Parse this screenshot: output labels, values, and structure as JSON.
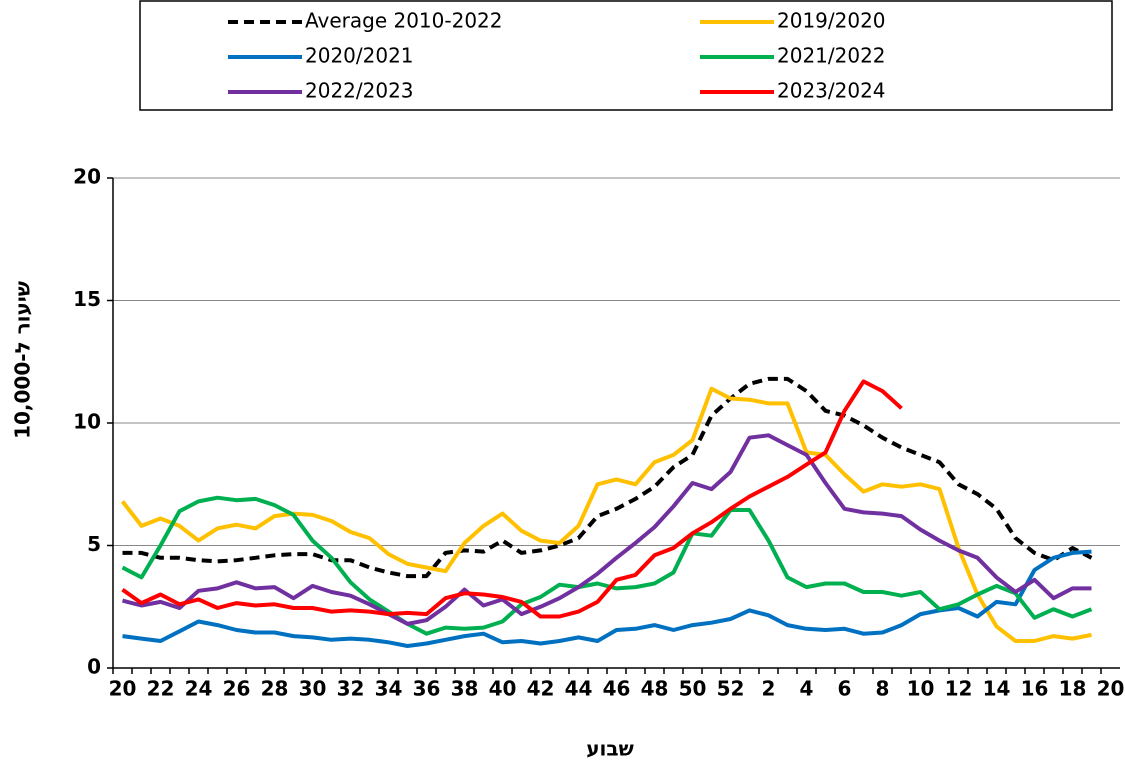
{
  "chart_data": {
    "type": "line",
    "y_label": "שיעור ל-10,000",
    "x_label": "שבוע",
    "categories": [
      "20",
      null,
      "22",
      null,
      "24",
      null,
      "26",
      null,
      "28",
      null,
      "30",
      null,
      "32",
      null,
      "34",
      null,
      "36",
      null,
      "38",
      null,
      "40",
      null,
      "42",
      null,
      "44",
      null,
      "46",
      null,
      "48",
      null,
      "50",
      null,
      "52",
      null,
      "2",
      null,
      "4",
      null,
      "6",
      null,
      "8",
      null,
      "10",
      null,
      "12",
      null,
      "14",
      null,
      "16",
      null,
      "18",
      null,
      "20"
    ],
    "series": [
      {
        "name": "Average 2010-2022",
        "color": "#000000",
        "style": "dashed",
        "values": [
          4.7,
          4.7,
          4.5,
          4.5,
          4.4,
          4.35,
          4.4,
          4.5,
          4.6,
          4.65,
          4.65,
          4.4,
          4.4,
          4.1,
          3.9,
          3.75,
          3.75,
          4.7,
          4.8,
          4.75,
          5.2,
          4.7,
          4.8,
          5.0,
          5.3,
          6.2,
          6.5,
          6.9,
          7.4,
          8.2,
          8.7,
          10.3,
          11.0,
          11.6,
          11.8,
          11.8,
          11.3,
          10.5,
          10.3,
          9.9,
          9.4,
          9.0,
          8.7,
          8.4,
          7.5,
          7.1,
          6.5,
          5.3,
          4.7,
          4.4,
          4.9,
          4.5,
          null
        ]
      },
      {
        "name": "2019/2020",
        "color": "#ffc000",
        "style": "solid",
        "values": [
          6.8,
          5.8,
          6.1,
          5.8,
          5.2,
          5.7,
          5.85,
          5.7,
          6.2,
          6.3,
          6.25,
          6.0,
          5.55,
          5.3,
          4.65,
          4.25,
          4.1,
          3.95,
          5.1,
          5.8,
          6.3,
          5.6,
          5.2,
          5.1,
          5.8,
          7.5,
          7.7,
          7.5,
          8.4,
          8.7,
          9.3,
          11.4,
          11.0,
          10.95,
          10.8,
          10.8,
          8.8,
          8.7,
          7.9,
          7.2,
          7.5,
          7.4,
          7.5,
          7.3,
          4.9,
          3.0,
          1.7,
          1.1,
          1.1,
          1.3,
          1.2,
          1.35,
          null
        ]
      },
      {
        "name": "2020/2021",
        "color": "#0070c0",
        "style": "solid",
        "values": [
          1.3,
          1.2,
          1.1,
          1.5,
          1.9,
          1.75,
          1.55,
          1.45,
          1.45,
          1.3,
          1.25,
          1.15,
          1.2,
          1.15,
          1.05,
          0.9,
          1.0,
          1.15,
          1.3,
          1.4,
          1.05,
          1.1,
          1.0,
          1.1,
          1.25,
          1.1,
          1.55,
          1.6,
          1.75,
          1.55,
          1.75,
          1.85,
          2.0,
          2.35,
          2.15,
          1.75,
          1.6,
          1.55,
          1.6,
          1.4,
          1.45,
          1.75,
          2.2,
          2.35,
          2.45,
          2.1,
          2.7,
          2.6,
          4.0,
          4.5,
          4.7,
          4.75,
          null
        ]
      },
      {
        "name": "2021/2022",
        "color": "#00b050",
        "style": "solid",
        "values": [
          4.1,
          3.7,
          5.0,
          6.4,
          6.8,
          6.95,
          6.85,
          6.9,
          6.65,
          6.25,
          5.2,
          4.5,
          3.5,
          2.8,
          2.3,
          1.8,
          1.4,
          1.65,
          1.6,
          1.65,
          1.9,
          2.6,
          2.9,
          3.4,
          3.3,
          3.45,
          3.25,
          3.3,
          3.45,
          3.9,
          5.5,
          5.4,
          6.45,
          6.45,
          5.2,
          3.7,
          3.3,
          3.45,
          3.45,
          3.1,
          3.1,
          2.95,
          3.1,
          2.4,
          2.6,
          3.0,
          3.35,
          3.05,
          2.05,
          2.4,
          2.1,
          2.4,
          null
        ]
      },
      {
        "name": "2022/2023",
        "color": "#7030a0",
        "style": "solid",
        "values": [
          2.75,
          2.55,
          2.7,
          2.45,
          3.15,
          3.25,
          3.5,
          3.25,
          3.3,
          2.85,
          3.35,
          3.1,
          2.95,
          2.6,
          2.2,
          1.8,
          1.95,
          2.5,
          3.2,
          2.55,
          2.8,
          2.2,
          2.5,
          2.85,
          3.3,
          3.85,
          4.5,
          5.1,
          5.75,
          6.6,
          7.55,
          7.3,
          8.0,
          9.4,
          9.5,
          9.1,
          8.7,
          7.55,
          6.5,
          6.35,
          6.3,
          6.2,
          5.65,
          5.2,
          4.8,
          4.5,
          3.7,
          3.1,
          3.6,
          2.85,
          3.25,
          3.25,
          null
        ]
      },
      {
        "name": "2023/2024",
        "color": "#ff0000",
        "style": "solid",
        "values": [
          3.2,
          2.65,
          3.0,
          2.6,
          2.8,
          2.45,
          2.65,
          2.55,
          2.6,
          2.45,
          2.45,
          2.3,
          2.35,
          2.3,
          2.2,
          2.25,
          2.2,
          2.85,
          3.05,
          3.0,
          2.9,
          2.7,
          2.1,
          2.1,
          2.3,
          2.7,
          3.6,
          3.8,
          4.6,
          4.9,
          5.5,
          5.95,
          6.5,
          7.0,
          7.4,
          7.8,
          8.3,
          8.8,
          10.5,
          11.7,
          11.3,
          10.6,
          null,
          null,
          null,
          null,
          null,
          null,
          null,
          null,
          null,
          null,
          null
        ]
      }
    ],
    "ylim": [
      0,
      20
    ],
    "yticks": [
      0,
      5,
      10,
      15,
      20
    ],
    "grid": true,
    "legend": "top"
  }
}
